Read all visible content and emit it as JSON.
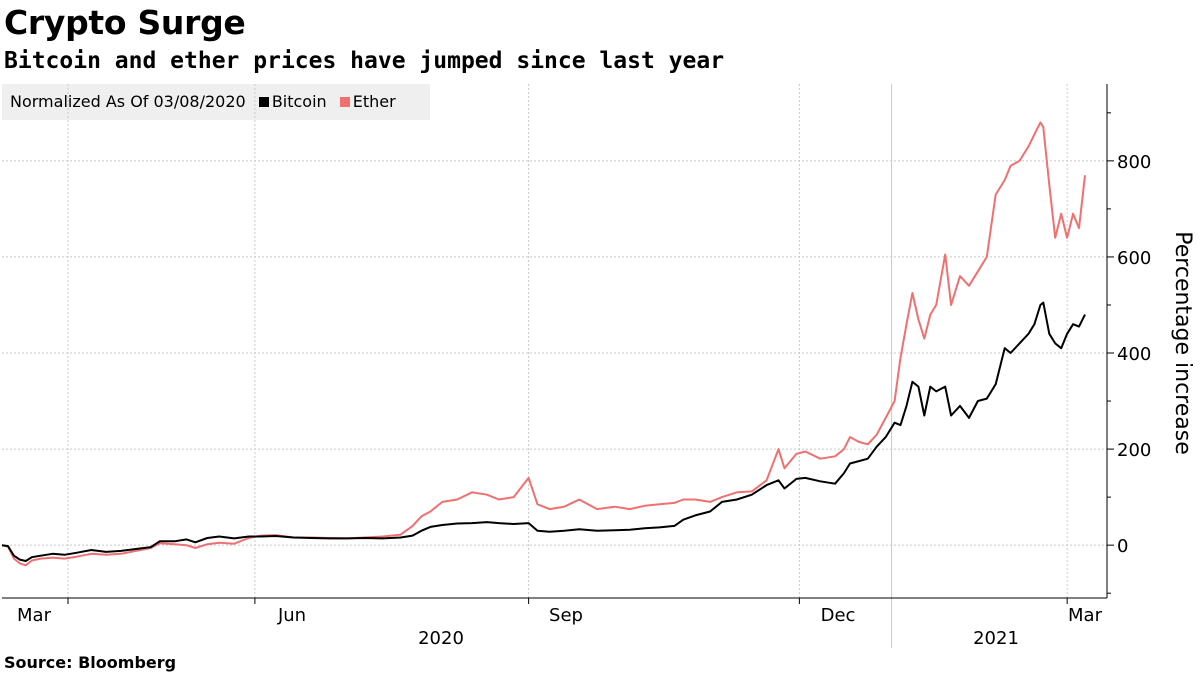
{
  "header": {
    "title": "Crypto Surge",
    "subtitle": "Bitcoin and ether prices have jumped since last year"
  },
  "legend": {
    "note": "Normalized As Of 03/08/2020",
    "items": [
      {
        "label": "Bitcoin",
        "color": "#000000"
      },
      {
        "label": "Ether",
        "color": "#f07070"
      }
    ]
  },
  "source": "Source: Bloomberg",
  "chart_data": {
    "type": "line",
    "ylabel": "Percentage increase",
    "ylim": [
      -110,
      960
    ],
    "yticks": [
      0,
      200,
      400,
      600,
      800
    ],
    "xlim": [
      "2020-03-08",
      "2021-03-07"
    ],
    "xticks": [
      {
        "date": "2020-03-01",
        "label": "Mar"
      },
      {
        "date": "2020-06-01",
        "label": "Jun"
      },
      {
        "date": "2020-09-01",
        "label": "Sep"
      },
      {
        "date": "2020-12-01",
        "label": "Dec"
      },
      {
        "date": "2021-03-01",
        "label": "Mar"
      }
    ],
    "year_labels": [
      {
        "label": "2020",
        "date": "2020-08-01"
      },
      {
        "label": "2021",
        "date": "2021-02-01"
      }
    ],
    "year_separators": [
      "2021-01-01"
    ],
    "grid": true,
    "axis_side": "right",
    "series": [
      {
        "name": "Bitcoin",
        "color": "#000000",
        "points": [
          [
            "2020-03-08",
            0
          ],
          [
            "2020-03-10",
            -2
          ],
          [
            "2020-03-12",
            -22
          ],
          [
            "2020-03-14",
            -30
          ],
          [
            "2020-03-16",
            -33
          ],
          [
            "2020-03-18",
            -25
          ],
          [
            "2020-03-21",
            -22
          ],
          [
            "2020-03-25",
            -18
          ],
          [
            "2020-03-29",
            -20
          ],
          [
            "2020-04-02",
            -16
          ],
          [
            "2020-04-07",
            -10
          ],
          [
            "2020-04-12",
            -14
          ],
          [
            "2020-04-17",
            -12
          ],
          [
            "2020-04-22",
            -8
          ],
          [
            "2020-04-27",
            -4
          ],
          [
            "2020-04-30",
            8
          ],
          [
            "2020-05-05",
            8
          ],
          [
            "2020-05-09",
            12
          ],
          [
            "2020-05-12",
            6
          ],
          [
            "2020-05-16",
            15
          ],
          [
            "2020-05-20",
            18
          ],
          [
            "2020-05-25",
            14
          ],
          [
            "2020-05-30",
            18
          ],
          [
            "2020-06-03",
            18
          ],
          [
            "2020-06-08",
            19
          ],
          [
            "2020-06-14",
            16
          ],
          [
            "2020-06-20",
            15
          ],
          [
            "2020-06-26",
            14
          ],
          [
            "2020-07-02",
            14
          ],
          [
            "2020-07-08",
            15
          ],
          [
            "2020-07-14",
            14
          ],
          [
            "2020-07-20",
            16
          ],
          [
            "2020-07-24",
            20
          ],
          [
            "2020-07-27",
            30
          ],
          [
            "2020-07-30",
            38
          ],
          [
            "2020-08-03",
            42
          ],
          [
            "2020-08-08",
            45
          ],
          [
            "2020-08-13",
            46
          ],
          [
            "2020-08-18",
            48
          ],
          [
            "2020-08-22",
            46
          ],
          [
            "2020-08-27",
            44
          ],
          [
            "2020-09-01",
            46
          ],
          [
            "2020-09-04",
            30
          ],
          [
            "2020-09-08",
            28
          ],
          [
            "2020-09-13",
            30
          ],
          [
            "2020-09-18",
            33
          ],
          [
            "2020-09-24",
            30
          ],
          [
            "2020-09-30",
            31
          ],
          [
            "2020-10-05",
            32
          ],
          [
            "2020-10-10",
            35
          ],
          [
            "2020-10-15",
            37
          ],
          [
            "2020-10-20",
            40
          ],
          [
            "2020-10-23",
            53
          ],
          [
            "2020-10-27",
            62
          ],
          [
            "2020-11-01",
            70
          ],
          [
            "2020-11-05",
            90
          ],
          [
            "2020-11-10",
            95
          ],
          [
            "2020-11-15",
            105
          ],
          [
            "2020-11-20",
            125
          ],
          [
            "2020-11-24",
            135
          ],
          [
            "2020-11-26",
            118
          ],
          [
            "2020-11-30",
            138
          ],
          [
            "2020-12-03",
            140
          ],
          [
            "2020-12-08",
            133
          ],
          [
            "2020-12-13",
            128
          ],
          [
            "2020-12-16",
            150
          ],
          [
            "2020-12-18",
            170
          ],
          [
            "2020-12-21",
            175
          ],
          [
            "2020-12-24",
            180
          ],
          [
            "2020-12-27",
            205
          ],
          [
            "2020-12-30",
            225
          ],
          [
            "2021-01-02",
            255
          ],
          [
            "2021-01-04",
            250
          ],
          [
            "2021-01-06",
            290
          ],
          [
            "2021-01-08",
            340
          ],
          [
            "2021-01-10",
            330
          ],
          [
            "2021-01-12",
            270
          ],
          [
            "2021-01-14",
            330
          ],
          [
            "2021-01-16",
            320
          ],
          [
            "2021-01-19",
            330
          ],
          [
            "2021-01-21",
            270
          ],
          [
            "2021-01-24",
            290
          ],
          [
            "2021-01-27",
            265
          ],
          [
            "2021-01-30",
            300
          ],
          [
            "2021-02-02",
            305
          ],
          [
            "2021-02-05",
            335
          ],
          [
            "2021-02-08",
            410
          ],
          [
            "2021-02-10",
            400
          ],
          [
            "2021-02-13",
            420
          ],
          [
            "2021-02-16",
            440
          ],
          [
            "2021-02-18",
            460
          ],
          [
            "2021-02-20",
            500
          ],
          [
            "2021-02-21",
            505
          ],
          [
            "2021-02-23",
            440
          ],
          [
            "2021-02-25",
            420
          ],
          [
            "2021-02-27",
            410
          ],
          [
            "2021-03-01",
            440
          ],
          [
            "2021-03-03",
            460
          ],
          [
            "2021-03-05",
            455
          ],
          [
            "2021-03-07",
            480
          ]
        ]
      },
      {
        "name": "Ether",
        "color": "#f07070",
        "points": [
          [
            "2020-03-08",
            0
          ],
          [
            "2020-03-10",
            -3
          ],
          [
            "2020-03-12",
            -28
          ],
          [
            "2020-03-14",
            -38
          ],
          [
            "2020-03-16",
            -42
          ],
          [
            "2020-03-18",
            -32
          ],
          [
            "2020-03-21",
            -28
          ],
          [
            "2020-03-25",
            -26
          ],
          [
            "2020-03-29",
            -28
          ],
          [
            "2020-04-02",
            -24
          ],
          [
            "2020-04-07",
            -18
          ],
          [
            "2020-04-12",
            -20
          ],
          [
            "2020-04-17",
            -18
          ],
          [
            "2020-04-22",
            -12
          ],
          [
            "2020-04-27",
            -6
          ],
          [
            "2020-04-30",
            4
          ],
          [
            "2020-05-05",
            2
          ],
          [
            "2020-05-09",
            0
          ],
          [
            "2020-05-12",
            -6
          ],
          [
            "2020-05-16",
            2
          ],
          [
            "2020-05-20",
            5
          ],
          [
            "2020-05-25",
            3
          ],
          [
            "2020-05-30",
            15
          ],
          [
            "2020-06-03",
            20
          ],
          [
            "2020-06-08",
            21
          ],
          [
            "2020-06-14",
            16
          ],
          [
            "2020-06-20",
            16
          ],
          [
            "2020-06-26",
            15
          ],
          [
            "2020-07-02",
            14
          ],
          [
            "2020-07-08",
            16
          ],
          [
            "2020-07-14",
            18
          ],
          [
            "2020-07-20",
            22
          ],
          [
            "2020-07-24",
            40
          ],
          [
            "2020-07-27",
            60
          ],
          [
            "2020-07-30",
            70
          ],
          [
            "2020-08-03",
            90
          ],
          [
            "2020-08-08",
            95
          ],
          [
            "2020-08-13",
            110
          ],
          [
            "2020-08-18",
            105
          ],
          [
            "2020-08-22",
            95
          ],
          [
            "2020-08-27",
            100
          ],
          [
            "2020-09-01",
            140
          ],
          [
            "2020-09-04",
            85
          ],
          [
            "2020-09-08",
            75
          ],
          [
            "2020-09-13",
            80
          ],
          [
            "2020-09-18",
            95
          ],
          [
            "2020-09-24",
            75
          ],
          [
            "2020-09-30",
            80
          ],
          [
            "2020-10-05",
            75
          ],
          [
            "2020-10-10",
            82
          ],
          [
            "2020-10-15",
            85
          ],
          [
            "2020-10-20",
            88
          ],
          [
            "2020-10-23",
            95
          ],
          [
            "2020-10-27",
            95
          ],
          [
            "2020-11-01",
            90
          ],
          [
            "2020-11-05",
            100
          ],
          [
            "2020-11-10",
            110
          ],
          [
            "2020-11-15",
            112
          ],
          [
            "2020-11-20",
            135
          ],
          [
            "2020-11-24",
            200
          ],
          [
            "2020-11-26",
            160
          ],
          [
            "2020-11-30",
            190
          ],
          [
            "2020-12-03",
            195
          ],
          [
            "2020-12-08",
            180
          ],
          [
            "2020-12-13",
            185
          ],
          [
            "2020-12-16",
            200
          ],
          [
            "2020-12-18",
            225
          ],
          [
            "2020-12-21",
            215
          ],
          [
            "2020-12-24",
            210
          ],
          [
            "2020-12-27",
            230
          ],
          [
            "2020-12-30",
            265
          ],
          [
            "2021-01-02",
            300
          ],
          [
            "2021-01-04",
            390
          ],
          [
            "2021-01-06",
            460
          ],
          [
            "2021-01-08",
            525
          ],
          [
            "2021-01-10",
            470
          ],
          [
            "2021-01-12",
            430
          ],
          [
            "2021-01-14",
            480
          ],
          [
            "2021-01-16",
            500
          ],
          [
            "2021-01-19",
            605
          ],
          [
            "2021-01-21",
            500
          ],
          [
            "2021-01-24",
            560
          ],
          [
            "2021-01-27",
            540
          ],
          [
            "2021-01-30",
            570
          ],
          [
            "2021-02-02",
            600
          ],
          [
            "2021-02-05",
            730
          ],
          [
            "2021-02-08",
            760
          ],
          [
            "2021-02-10",
            790
          ],
          [
            "2021-02-13",
            800
          ],
          [
            "2021-02-16",
            830
          ],
          [
            "2021-02-18",
            855
          ],
          [
            "2021-02-20",
            880
          ],
          [
            "2021-02-21",
            870
          ],
          [
            "2021-02-23",
            750
          ],
          [
            "2021-02-25",
            640
          ],
          [
            "2021-02-27",
            690
          ],
          [
            "2021-03-01",
            640
          ],
          [
            "2021-03-03",
            690
          ],
          [
            "2021-03-05",
            660
          ],
          [
            "2021-03-07",
            770
          ]
        ]
      }
    ]
  }
}
